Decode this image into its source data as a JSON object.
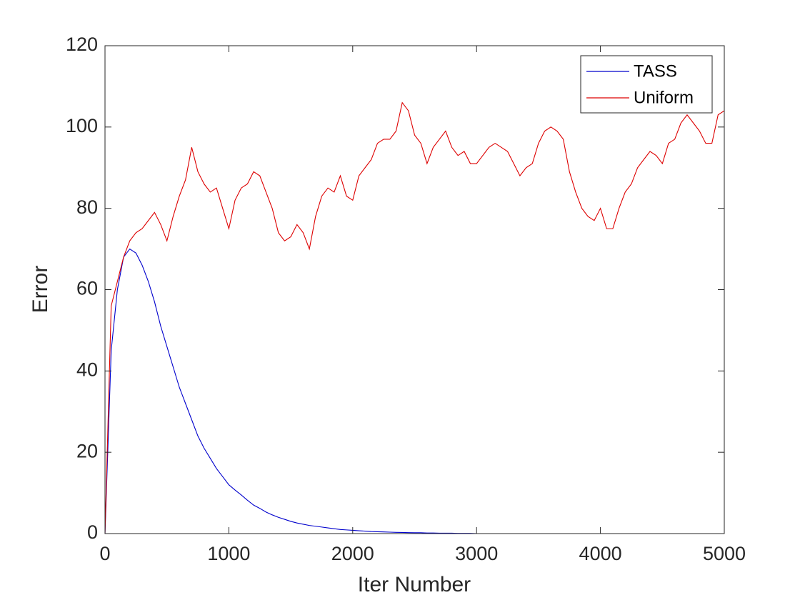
{
  "chart_data": {
    "type": "line",
    "xlabel": "Iter Number",
    "ylabel": "Error",
    "x": [
      0,
      50,
      100,
      150,
      200,
      250,
      300,
      350,
      400,
      450,
      500,
      550,
      600,
      650,
      700,
      750,
      800,
      850,
      900,
      950,
      1000,
      1050,
      1100,
      1150,
      1200,
      1250,
      1300,
      1350,
      1400,
      1450,
      1500,
      1550,
      1600,
      1650,
      1700,
      1750,
      1800,
      1850,
      1900,
      1950,
      2000,
      2050,
      2100,
      2150,
      2200,
      2250,
      2300,
      2350,
      2400,
      2450,
      2500,
      2550,
      2600,
      2650,
      2700,
      2750,
      2800,
      2850,
      2900,
      2950,
      3000,
      3050,
      3100,
      3150,
      3200,
      3250,
      3300,
      3350,
      3400,
      3450,
      3500,
      3550,
      3600,
      3650,
      3700,
      3750,
      3800,
      3850,
      3900,
      3950,
      4000,
      4050,
      4100,
      4150,
      4200,
      4250,
      4300,
      4350,
      4400,
      4450,
      4500,
      4550,
      4600,
      4650,
      4700,
      4750,
      4800,
      4850,
      4900,
      4950,
      5000
    ],
    "series": [
      {
        "name": "TASS",
        "color": "#0000cc",
        "values": [
          0,
          45,
          60,
          68,
          70,
          69,
          66,
          62,
          57,
          51,
          46,
          41,
          36,
          32,
          28,
          24,
          21,
          18.5,
          16,
          14,
          12,
          10.7,
          9.5,
          8.2,
          7,
          6.2,
          5.3,
          4.6,
          4,
          3.5,
          3,
          2.6,
          2.3,
          2,
          1.8,
          1.6,
          1.4,
          1.2,
          1,
          0.9,
          0.8,
          0.7,
          0.6,
          0.5,
          0.45,
          0.4,
          0.35,
          0.3,
          0.27,
          0.23,
          0.2,
          0.2,
          0.15,
          0.15,
          0.1,
          0.1,
          0.1,
          0.05,
          0.05,
          0.05,
          0,
          0,
          0,
          0,
          0,
          0,
          0,
          0,
          0,
          0,
          0,
          0,
          0,
          0,
          0,
          0,
          0,
          0,
          0,
          0,
          0,
          0,
          0,
          0,
          0,
          0,
          0,
          0,
          0,
          0,
          0,
          0,
          0,
          0,
          0,
          0,
          0,
          0,
          0,
          0,
          0
        ]
      },
      {
        "name": "Uniform",
        "color": "#dd0000",
        "values": [
          0,
          56,
          62,
          68,
          72,
          74,
          75,
          77,
          79,
          76,
          72,
          78,
          83,
          87,
          95,
          89,
          86,
          84,
          85,
          80,
          75,
          82,
          85,
          86,
          89,
          88,
          84,
          80,
          74,
          72,
          73,
          76,
          74,
          70,
          78,
          83,
          85,
          84,
          88,
          83,
          82,
          88,
          90,
          92,
          96,
          97,
          97,
          99,
          106,
          104,
          98,
          96,
          91,
          95,
          97,
          99,
          95,
          93,
          94,
          91,
          91,
          93,
          95,
          96,
          95,
          94,
          91,
          88,
          90,
          91,
          96,
          99,
          100,
          99,
          97,
          89,
          84,
          80,
          78,
          77,
          80,
          75,
          75,
          80,
          84,
          86,
          90,
          92,
          94,
          93,
          91,
          96,
          97,
          101,
          103,
          101,
          99,
          96,
          96,
          103,
          104
        ]
      }
    ],
    "xlim": [
      0,
      5000
    ],
    "xticks": [
      0,
      1000,
      2000,
      3000,
      4000,
      5000
    ],
    "ylim": [
      0,
      120
    ],
    "yticks": [
      0,
      20,
      40,
      60,
      80,
      100,
      120
    ],
    "legend": "top-right",
    "grid": false
  }
}
